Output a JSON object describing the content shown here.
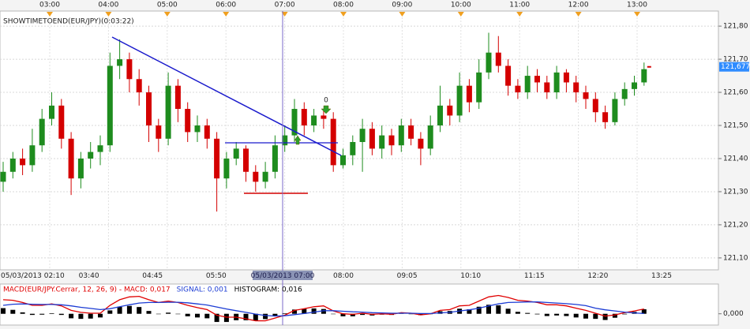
{
  "chart_data": [
    {
      "type": "candlestick",
      "indicator_label": "SHOWTIMETOEND(EUR/JPY)(0:03:22)",
      "top_ticks": [
        "03:00",
        "04:00",
        "05:00",
        "06:00",
        "07:00",
        "08:00",
        "09:00",
        "10:00",
        "11:00",
        "12:00",
        "13:00"
      ],
      "bottom_ticks": [
        "05/03/2013 02:10",
        "03:40",
        "04:45",
        "05:50",
        "08:00",
        "09:05",
        "10:10",
        "11:15",
        "12:20",
        "13:25"
      ],
      "cursor_label": "05/03/2013 07:00",
      "marker_label": "0",
      "up_color": "#1e8c1e",
      "down_color": "#d40000",
      "ylim": [
        121.064,
        121.836
      ],
      "yticks": [
        {
          "value": 121.1,
          "label": "121,10"
        },
        {
          "value": 121.2,
          "label": "121,20"
        },
        {
          "value": 121.3,
          "label": "121,30"
        },
        {
          "value": 121.4,
          "label": "121,40"
        },
        {
          "value": 121.5,
          "label": "121,50"
        },
        {
          "value": 121.6,
          "label": "121,60"
        },
        {
          "value": 121.7,
          "label": "121,70"
        },
        {
          "value": 121.8,
          "label": "121,80"
        }
      ],
      "grid": true,
      "last_price": {
        "value": 121.677,
        "label": "121,677"
      },
      "open": [
        121.33,
        121.36,
        121.4,
        121.38,
        121.44,
        121.52,
        121.56,
        121.46,
        121.34,
        121.4,
        121.42,
        121.44,
        121.68,
        121.7,
        121.64,
        121.6,
        121.5,
        121.46,
        121.62,
        121.55,
        121.48,
        121.5,
        121.46,
        121.34,
        121.4,
        121.43,
        121.36,
        121.33,
        121.36,
        121.44,
        121.47,
        121.55,
        121.5,
        121.53,
        121.52,
        121.38,
        121.41,
        121.45,
        121.49,
        121.43,
        121.47,
        121.44,
        121.5,
        121.46,
        121.43,
        121.5,
        121.56,
        121.53,
        121.62,
        121.57,
        121.66,
        121.72,
        121.68,
        121.62,
        121.6,
        121.65,
        121.63,
        121.6,
        121.66,
        121.63,
        121.6,
        121.58,
        121.54,
        121.51,
        121.58,
        121.61,
        121.63
      ],
      "high": [
        121.39,
        121.42,
        121.43,
        121.49,
        121.55,
        121.6,
        121.58,
        121.48,
        121.42,
        121.45,
        121.47,
        121.72,
        121.76,
        121.72,
        121.67,
        121.62,
        121.52,
        121.66,
        121.64,
        121.57,
        121.53,
        121.52,
        121.48,
        121.42,
        121.45,
        121.44,
        121.38,
        121.39,
        121.47,
        121.5,
        121.58,
        121.57,
        121.55,
        121.55,
        121.54,
        121.43,
        121.47,
        121.52,
        121.51,
        121.5,
        121.49,
        121.52,
        121.52,
        121.48,
        121.53,
        121.62,
        121.58,
        121.66,
        121.64,
        121.7,
        121.78,
        121.77,
        121.7,
        121.64,
        121.68,
        121.67,
        121.65,
        121.68,
        121.67,
        121.65,
        121.62,
        121.6,
        121.56,
        121.6,
        121.63,
        121.65,
        121.69
      ],
      "low": [
        121.3,
        121.34,
        121.35,
        121.36,
        121.42,
        121.5,
        121.43,
        121.29,
        121.31,
        121.37,
        121.38,
        121.42,
        121.64,
        121.6,
        121.56,
        121.45,
        121.42,
        121.44,
        121.51,
        121.45,
        121.45,
        121.43,
        121.24,
        121.31,
        121.38,
        121.33,
        121.3,
        121.31,
        121.34,
        121.42,
        121.45,
        121.47,
        121.48,
        121.49,
        121.36,
        121.37,
        121.38,
        121.36,
        121.41,
        121.4,
        121.41,
        121.42,
        121.44,
        121.38,
        121.41,
        121.48,
        121.5,
        121.51,
        121.54,
        121.55,
        121.64,
        121.66,
        121.59,
        121.58,
        121.58,
        121.6,
        121.58,
        121.58,
        121.6,
        121.57,
        121.55,
        121.51,
        121.49,
        121.5,
        121.56,
        121.59,
        121.62
      ],
      "close": [
        121.36,
        121.4,
        121.38,
        121.44,
        121.52,
        121.56,
        121.46,
        121.34,
        121.4,
        121.42,
        121.44,
        121.68,
        121.7,
        121.64,
        121.6,
        121.5,
        121.46,
        121.62,
        121.55,
        121.48,
        121.5,
        121.46,
        121.34,
        121.4,
        121.43,
        121.36,
        121.33,
        121.36,
        121.44,
        121.47,
        121.55,
        121.5,
        121.53,
        121.52,
        121.38,
        121.41,
        121.45,
        121.49,
        121.43,
        121.47,
        121.44,
        121.5,
        121.46,
        121.43,
        121.5,
        121.56,
        121.53,
        121.62,
        121.57,
        121.66,
        121.72,
        121.68,
        121.62,
        121.6,
        121.65,
        121.63,
        121.6,
        121.66,
        121.63,
        121.6,
        121.58,
        121.54,
        121.51,
        121.58,
        121.61,
        121.63,
        121.67
      ]
    },
    {
      "type": "macd",
      "ylim": [
        -0.04,
        0.1
      ],
      "yticks": [
        {
          "value": 0,
          "label": "0,000"
        }
      ],
      "series": [
        {
          "label": "MACD(EUR/JPY.Cerrar, 12, 26, 9) - MACD: 0,017",
          "color": "#e00000",
          "style": "line",
          "values": [
            0.05,
            0.048,
            0.04,
            0.03,
            0.03,
            0.035,
            0.028,
            0.012,
            0.005,
            0.002,
            0.002,
            0.03,
            0.05,
            0.06,
            0.062,
            0.05,
            0.04,
            0.045,
            0.04,
            0.03,
            0.022,
            0.015,
            -0.005,
            -0.012,
            -0.012,
            -0.018,
            -0.025,
            -0.025,
            -0.015,
            -0.005,
            0.012,
            0.018,
            0.025,
            0.028,
            0.01,
            0.0,
            -0.002,
            0.002,
            -0.002,
            0.0,
            -0.002,
            0.004,
            0.002,
            -0.004,
            0.0,
            0.012,
            0.015,
            0.028,
            0.03,
            0.045,
            0.06,
            0.065,
            0.058,
            0.048,
            0.045,
            0.04,
            0.032,
            0.032,
            0.028,
            0.02,
            0.012,
            0.002,
            -0.008,
            -0.004,
            0.004,
            0.01,
            0.017
          ]
        },
        {
          "label": "SIGNAL: 0,001",
          "color": "#1c3cd4",
          "style": "line",
          "values": [
            0.03,
            0.034,
            0.035,
            0.034,
            0.033,
            0.033,
            0.032,
            0.028,
            0.023,
            0.019,
            0.015,
            0.018,
            0.025,
            0.032,
            0.038,
            0.04,
            0.04,
            0.041,
            0.041,
            0.039,
            0.035,
            0.031,
            0.024,
            0.017,
            0.011,
            0.005,
            -0.001,
            -0.006,
            -0.008,
            -0.007,
            -0.003,
            0.001,
            0.006,
            0.011,
            0.011,
            0.009,
            0.007,
            0.006,
            0.004,
            0.003,
            0.002,
            0.002,
            0.002,
            0.001,
            0.001,
            0.003,
            0.005,
            0.01,
            0.014,
            0.02,
            0.028,
            0.035,
            0.04,
            0.041,
            0.042,
            0.042,
            0.04,
            0.038,
            0.036,
            0.033,
            0.029,
            0.02,
            0.014,
            0.01,
            0.006,
            0.003,
            0.001
          ]
        },
        {
          "label": "HISTOGRAM: 0,016",
          "color": "#000000",
          "style": "bar",
          "values": [
            0.02,
            0.014,
            0.005,
            -0.004,
            -0.003,
            0.002,
            -0.004,
            -0.016,
            -0.018,
            -0.017,
            -0.013,
            0.012,
            0.025,
            0.028,
            0.024,
            0.01,
            0.0,
            0.004,
            -0.001,
            -0.009,
            -0.013,
            -0.016,
            -0.029,
            -0.029,
            -0.023,
            -0.023,
            -0.024,
            -0.019,
            -0.007,
            0.002,
            0.015,
            0.017,
            0.019,
            0.017,
            -0.001,
            -0.009,
            -0.009,
            -0.004,
            -0.006,
            -0.003,
            -0.004,
            0.002,
            0.0,
            -0.005,
            -0.001,
            0.009,
            0.01,
            0.018,
            0.016,
            0.025,
            0.032,
            0.03,
            0.018,
            0.007,
            0.003,
            -0.002,
            -0.008,
            -0.006,
            -0.008,
            -0.013,
            -0.017,
            -0.018,
            -0.022,
            -0.014,
            -0.002,
            0.007,
            0.016
          ]
        }
      ]
    }
  ]
}
